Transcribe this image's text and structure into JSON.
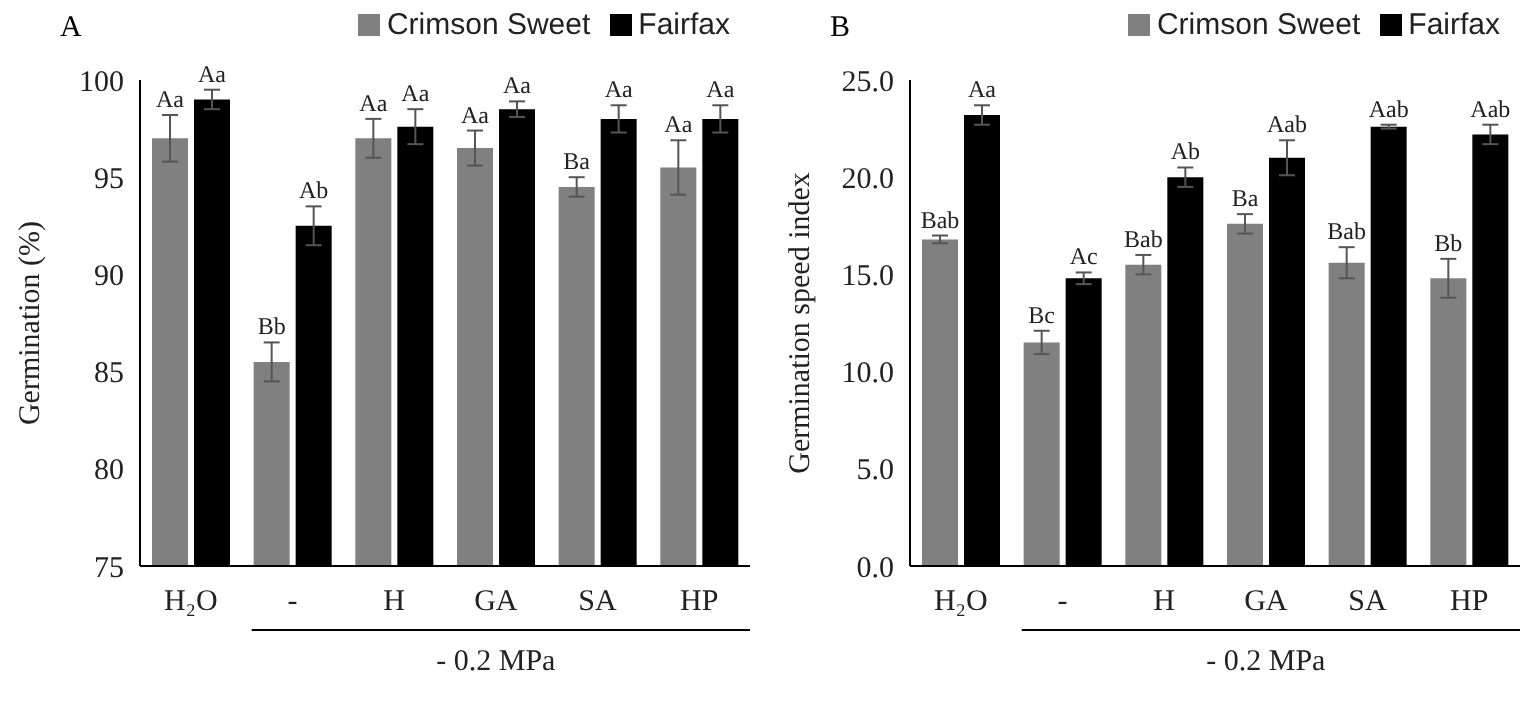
{
  "chart_data": [
    {
      "type": "bar",
      "title": "A",
      "ylabel": "Germination (%)",
      "categories": [
        "H₂O",
        "-",
        "H",
        "GA",
        "SA",
        "HP"
      ],
      "ylim": [
        75,
        100
      ],
      "yticks": [
        75,
        80,
        85,
        90,
        95,
        100
      ],
      "grid": false,
      "legend": "top right",
      "annotations": [
        "- 0.2 MPa"
      ],
      "series": [
        {
          "name": "Crimson Sweet",
          "color": "#808080",
          "values": [
            97,
            85.5,
            97,
            96.5,
            94.5,
            95.5
          ],
          "errors": [
            1.2,
            1,
            1,
            0.9,
            0.5,
            1.4
          ],
          "value_labels": [
            "Aa",
            "Bb",
            "Aa",
            "Aa",
            "Ba",
            "Aa"
          ]
        },
        {
          "name": "Fairfax",
          "color": "#000000",
          "values": [
            99,
            92.5,
            97.6,
            98.5,
            98,
            98
          ],
          "errors": [
            0.5,
            1,
            0.9,
            0.4,
            0.7,
            0.7
          ],
          "value_labels": [
            "Aa",
            "Ab",
            "Aa",
            "Aa",
            "Aa",
            "Aa"
          ]
        }
      ]
    },
    {
      "type": "bar",
      "title": "B",
      "ylabel": "Germination speed index",
      "categories": [
        "H₂O",
        "-",
        "H",
        "GA",
        "SA",
        "HP"
      ],
      "ylim": [
        0,
        25
      ],
      "yticks": [
        {
          "value": 0,
          "label": "0.0"
        },
        {
          "value": 5,
          "label": "5.0"
        },
        {
          "value": 10,
          "label": "10.0"
        },
        {
          "value": 15,
          "label": "15.0"
        },
        {
          "value": 20,
          "label": "20.0"
        },
        {
          "value": 25,
          "label": "25.0"
        }
      ],
      "grid": false,
      "legend": "top right",
      "annotations": [
        "- 0.2 MPa"
      ],
      "series": [
        {
          "name": "Crimson Sweet",
          "color": "#808080",
          "values": [
            16.8,
            11.5,
            15.5,
            17.6,
            15.6,
            14.8
          ],
          "errors": [
            0.2,
            0.6,
            0.5,
            0.5,
            0.8,
            1.0
          ],
          "value_labels": [
            "Bab",
            "Bc",
            "Bab",
            "Ba",
            "Bab",
            "Bb"
          ]
        },
        {
          "name": "Fairfax",
          "color": "#000000",
          "values": [
            23.2,
            14.8,
            20.0,
            21.0,
            22.6,
            22.2
          ],
          "errors": [
            0.5,
            0.3,
            0.5,
            0.9,
            0.1,
            0.5
          ],
          "value_labels": [
            "Aa",
            "Ac",
            "Ab",
            "Aab",
            "Aab",
            "Aab"
          ]
        }
      ]
    }
  ]
}
